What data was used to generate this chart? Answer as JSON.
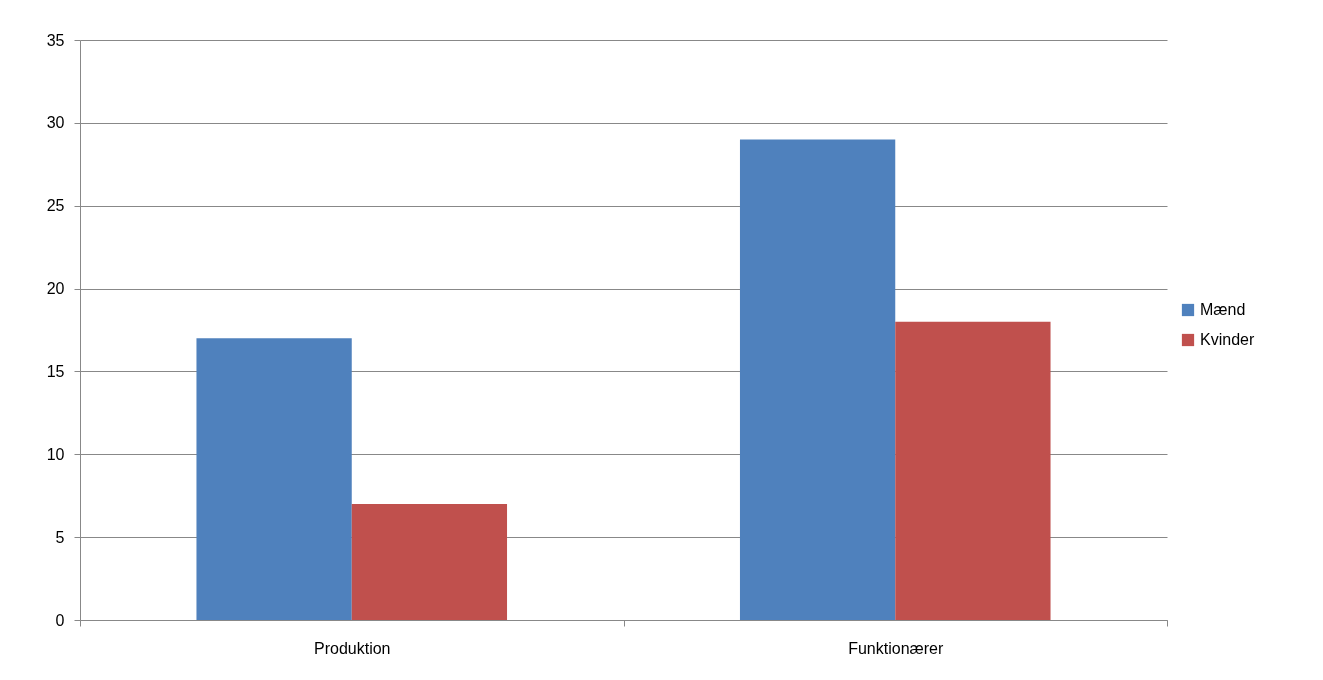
{
  "chart_data": {
    "type": "bar",
    "categories": [
      "Produktion",
      "Funktionærer"
    ],
    "series": [
      {
        "name": "Mænd",
        "color": "#4f81bd",
        "values": [
          17,
          29
        ]
      },
      {
        "name": "Kvinder",
        "color": "#c0504d",
        "values": [
          7,
          18
        ]
      }
    ],
    "ylim": [
      0,
      35
    ],
    "yticks": [
      0,
      5,
      10,
      15,
      20,
      25,
      30,
      35
    ],
    "grid": "y",
    "legend": "right"
  }
}
